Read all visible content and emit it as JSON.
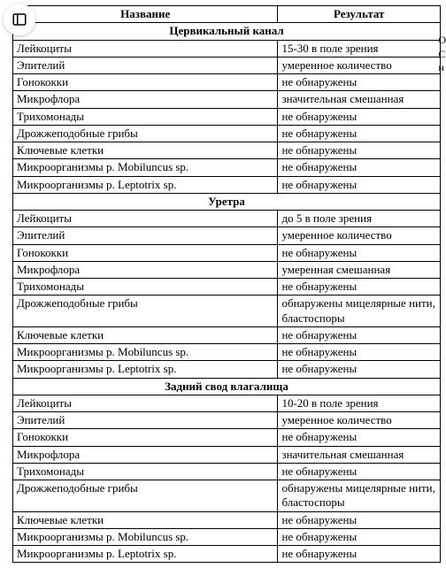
{
  "headers": {
    "name": "Название",
    "result": "Результат"
  },
  "edge_fragments": [
    "О",
    "С",
    "н"
  ],
  "sections": [
    {
      "title": "Цервикальный канал",
      "rows": [
        {
          "name": "Лейкоциты",
          "result": "15-30 в поле зрения"
        },
        {
          "name": "Эпителий",
          "result": "умеренное количество"
        },
        {
          "name": "Гонококки",
          "result": "не обнаружены"
        },
        {
          "name": "Микрофлора",
          "result": "значительная смешанная"
        },
        {
          "name": "Трихомонады",
          "result": "не обнаружены"
        },
        {
          "name": "Дрожжеподобные грибы",
          "result": "не обнаружены"
        },
        {
          "name": "Ключевые клетки",
          "result": "не обнаружены"
        },
        {
          "name": "Микроорганизмы р. Mobiluncus sp.",
          "result": "не обнаружены"
        },
        {
          "name": "Микроорганизмы р. Leptotrix sp.",
          "result": "не обнаружены"
        }
      ]
    },
    {
      "title": "Уретра",
      "rows": [
        {
          "name": "Лейкоциты",
          "result": "до 5 в поле зрения"
        },
        {
          "name": "Эпителий",
          "result": "умеренное количество"
        },
        {
          "name": "Гонококки",
          "result": "не обнаружены"
        },
        {
          "name": "Микрофлора",
          "result": "умеренная смешанная"
        },
        {
          "name": "Трихомонады",
          "result": "не обнаружены"
        },
        {
          "name": "Дрожжеподобные грибы",
          "result": "обнаружены мицелярные нити, бла­стоспоры"
        },
        {
          "name": "Ключевые клетки",
          "result": "не обнаружены"
        },
        {
          "name": "Микроорганизмы р. Mobiluncus sp.",
          "result": "не обнаружены"
        },
        {
          "name": "Микроорганизмы р. Leptotrix sp.",
          "result": "не обнаружены"
        }
      ]
    },
    {
      "title": "Задний свод влагалища",
      "rows": [
        {
          "name": "Лейкоциты",
          "result": "10-20 в поле зрения"
        },
        {
          "name": "Эпителий",
          "result": "умеренное количество"
        },
        {
          "name": "Гонококки",
          "result": "не обнаружены"
        },
        {
          "name": "Микрофлора",
          "result": "значительная смешанная"
        },
        {
          "name": "Трихомонады",
          "result": "не обнаружены"
        },
        {
          "name": "Дрожжеподобные грибы",
          "result": "обнаружены мицелярные нити, бла­стоспоры"
        },
        {
          "name": "Ключевые клетки",
          "result": "не обнаружены"
        },
        {
          "name": "Микроорганизмы р. Mobiluncus sp.",
          "result": "не обнаружены"
        },
        {
          "name": "Микроорганизмы р. Leptotrix sp.",
          "result": "не обнаружены"
        }
      ]
    }
  ],
  "colors": {
    "border": "#000000",
    "text": "#000000",
    "bg": "#ffffff"
  }
}
